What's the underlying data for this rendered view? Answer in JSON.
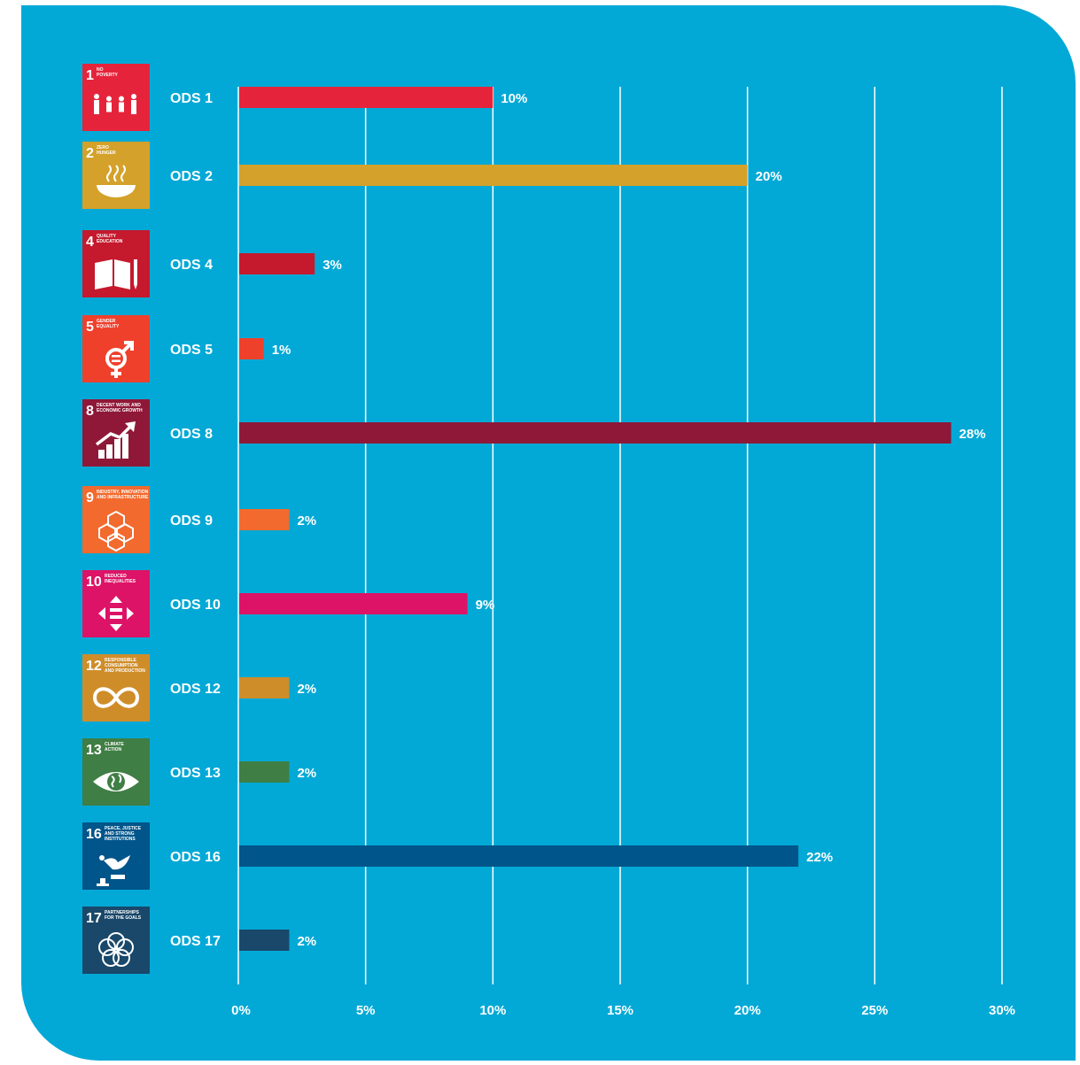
{
  "chart_data": {
    "type": "bar",
    "orientation": "horizontal",
    "title": "",
    "xlabel": "",
    "ylabel": "",
    "xlim": [
      0,
      30
    ],
    "x_ticks": [
      "0%",
      "5%",
      "10%",
      "15%",
      "20%",
      "25%",
      "30%"
    ],
    "grid": true,
    "legend": "none",
    "categories": [
      "ODS 1",
      "ODS 2",
      "ODS 4",
      "ODS 5",
      "ODS 8",
      "ODS 9",
      "ODS 10",
      "ODS 12",
      "ODS 13",
      "ODS 16",
      "ODS 17"
    ],
    "values": [
      10,
      20,
      3,
      1,
      28,
      2,
      9,
      2,
      2,
      22,
      2
    ],
    "value_labels": [
      "10%",
      "20%",
      "3%",
      "1%",
      "28%",
      "2%",
      "9%",
      "2%",
      "2%",
      "22%",
      "2%"
    ],
    "colors": [
      "#e5243b",
      "#d4a12a",
      "#c5192d",
      "#ef402c",
      "#8f1838",
      "#f26a2e",
      "#dd1367",
      "#cf8d2a",
      "#3f7e44",
      "#00558a",
      "#19486a"
    ],
    "sdg_tiles": [
      {
        "number": "1",
        "title": [
          "NO",
          "POVERTY"
        ],
        "icon": "family-icon"
      },
      {
        "number": "2",
        "title": [
          "ZERO",
          "HUNGER"
        ],
        "icon": "bowl-icon"
      },
      {
        "number": "4",
        "title": [
          "QUALITY",
          "EDUCATION"
        ],
        "icon": "book-icon"
      },
      {
        "number": "5",
        "title": [
          "GENDER",
          "EQUALITY"
        ],
        "icon": "gender-icon"
      },
      {
        "number": "8",
        "title": [
          "DECENT WORK AND",
          "ECONOMIC GROWTH"
        ],
        "icon": "growth-chart-icon"
      },
      {
        "number": "9",
        "title": [
          "INDUSTRY, INNOVATION",
          "AND INFRASTRUCTURE"
        ],
        "icon": "cubes-icon"
      },
      {
        "number": "10",
        "title": [
          "REDUCED",
          "INEQUALITIES"
        ],
        "icon": "equality-arrows-icon"
      },
      {
        "number": "12",
        "title": [
          "RESPONSIBLE",
          "CONSUMPTION",
          "AND PRODUCTION"
        ],
        "icon": "infinity-loop-icon"
      },
      {
        "number": "13",
        "title": [
          "CLIMATE",
          "ACTION"
        ],
        "icon": "eye-globe-icon"
      },
      {
        "number": "16",
        "title": [
          "PEACE, JUSTICE",
          "AND STRONG",
          "INSTITUTIONS"
        ],
        "icon": "dove-gavel-icon"
      },
      {
        "number": "17",
        "title": [
          "PARTNERSHIPS",
          "FOR THE GOALS"
        ],
        "icon": "rings-icon"
      }
    ]
  }
}
